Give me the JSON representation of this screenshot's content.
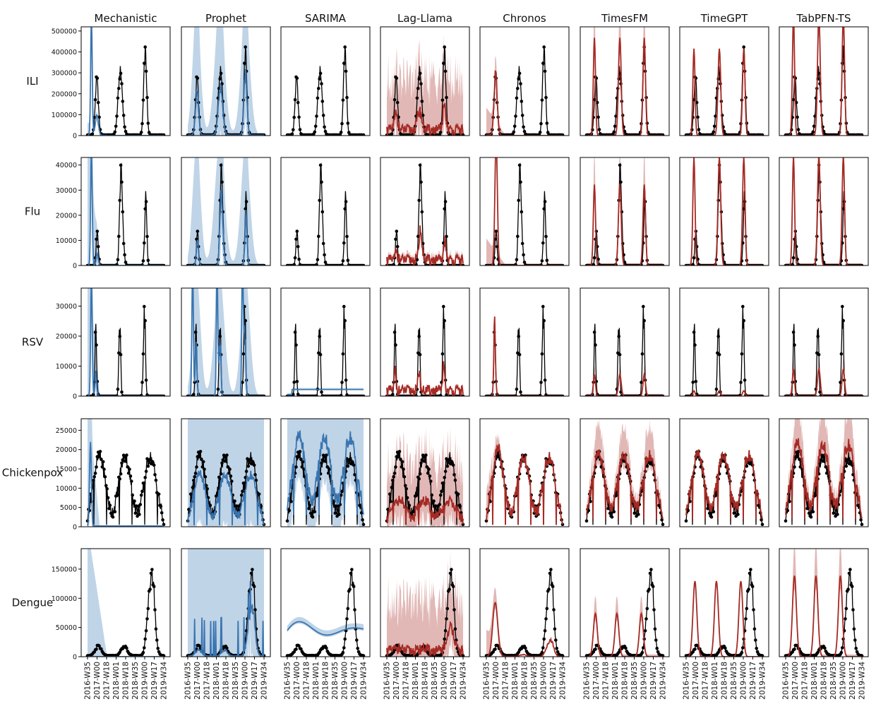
{
  "chart_data": {
    "type": "line",
    "layout": "grid",
    "columns": [
      "Mechanistic",
      "Prophet",
      "SARIMA",
      "Lag-Llama",
      "Chronos",
      "TimesFM",
      "TimeGPT",
      "TabPFN-TS"
    ],
    "rows": [
      {
        "label": "ILI",
        "yticks": [
          "0",
          "100000",
          "200000",
          "300000",
          "400000",
          "500000"
        ],
        "ymax": 520000
      },
      {
        "label": "Flu",
        "yticks": [
          "0",
          "10000",
          "20000",
          "30000",
          "40000"
        ],
        "ymax": 43000
      },
      {
        "label": "RSV",
        "yticks": [
          "0",
          "10000",
          "20000",
          "30000"
        ],
        "ymax": 36000
      },
      {
        "label": "Chickenpox",
        "yticks": [
          "0",
          "5000",
          "10000",
          "15000",
          "20000",
          "25000"
        ],
        "ymax": 28000
      },
      {
        "label": "Dengue",
        "yticks": [
          "0",
          "50000",
          "100000",
          "150000"
        ],
        "ymax": 185000
      }
    ],
    "x_tick_labels": [
      "2016-W35",
      "2017-W00",
      "2017-W18",
      "2018-W01",
      "2018-W18",
      "2018-W35",
      "2019-W00",
      "2019-W17",
      "2019-W34"
    ],
    "colors": {
      "observed": "#000000",
      "baseline": "#3a75b0",
      "baseline_band": "#a9c6df",
      "foundation": "#a52a24",
      "foundation_band": "#d7a09d"
    },
    "series_note_observed": "black line with dots",
    "observed_peaks": {
      "ILI": [
        [
          1,
          265000
        ],
        [
          2,
          300000
        ],
        [
          3,
          395000
        ]
      ],
      "Flu": [
        [
          1,
          13500
        ],
        [
          2,
          33000
        ],
        [
          3,
          26500
        ]
      ],
      "RSV": [
        [
          1,
          25000
        ],
        [
          2,
          22000
        ],
        [
          3,
          28000
        ]
      ],
      "Chickenpox": [
        [
          1,
          21500
        ],
        [
          2,
          16500
        ],
        [
          3,
          19000
        ]
      ],
      "Dengue": [
        [
          1,
          18000
        ],
        [
          2,
          18000
        ],
        [
          3,
          142000
        ]
      ]
    }
  }
}
